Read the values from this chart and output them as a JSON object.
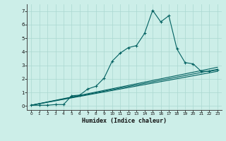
{
  "xlabel": "Humidex (Indice chaleur)",
  "bg_color": "#cceee8",
  "line_color": "#006060",
  "grid_color": "#aad8d0",
  "xlim": [
    -0.5,
    23.5
  ],
  "ylim": [
    -0.3,
    7.5
  ],
  "xticks": [
    0,
    1,
    2,
    3,
    4,
    5,
    6,
    7,
    8,
    9,
    10,
    11,
    12,
    13,
    14,
    15,
    16,
    17,
    18,
    19,
    20,
    21,
    22,
    23
  ],
  "yticks": [
    0,
    1,
    2,
    3,
    4,
    5,
    6,
    7
  ],
  "series1_x": [
    0,
    1,
    2,
    3,
    4,
    5,
    6,
    7,
    8,
    9,
    10,
    11,
    12,
    13,
    14,
    15,
    16,
    17,
    18,
    19,
    20,
    21,
    22,
    23
  ],
  "series1_y": [
    0.05,
    0.05,
    0.05,
    0.1,
    0.1,
    0.75,
    0.8,
    1.25,
    1.45,
    2.05,
    3.3,
    3.9,
    4.3,
    4.45,
    5.35,
    7.05,
    6.2,
    6.65,
    4.2,
    3.2,
    3.1,
    2.55,
    2.55,
    2.65
  ],
  "series2_y_start": 0.05,
  "series2_y_end": 2.55,
  "series3_y_start": 0.05,
  "series3_y_end": 2.7,
  "series4_y_start": 0.05,
  "series4_y_end": 2.85
}
